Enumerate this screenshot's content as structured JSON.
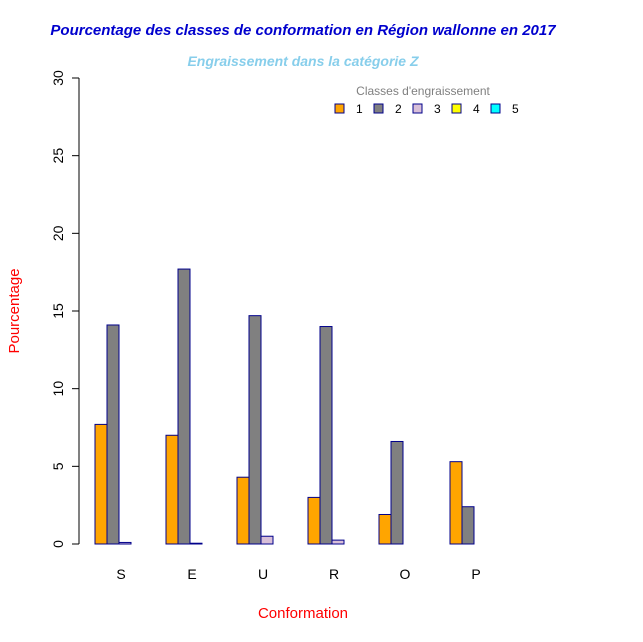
{
  "chart_data": {
    "type": "bar",
    "title": "Pourcentage des classes de conformation en Région wallonne en 2017",
    "subtitle": "Engraissement dans la catégorie Z",
    "xlabel": "Conformation",
    "ylabel": "Pourcentage",
    "ylim": [
      0,
      30
    ],
    "yticks": [
      0,
      5,
      10,
      15,
      20,
      25,
      30
    ],
    "categories": [
      "S",
      "E",
      "U",
      "R",
      "O",
      "P"
    ],
    "legend": {
      "title": "Classes d'engraissement",
      "placement": "top-right"
    },
    "series": [
      {
        "name": "1",
        "color": "#FFA500",
        "values": [
          7.7,
          7.0,
          4.3,
          3.0,
          1.9,
          5.3
        ]
      },
      {
        "name": "2",
        "color": "#808080",
        "values": [
          14.1,
          17.7,
          14.7,
          14.0,
          6.6,
          2.4
        ]
      },
      {
        "name": "3",
        "color": "#D8BFD8",
        "values": [
          0.1,
          0.05,
          0.5,
          0.25,
          0.0,
          0.0
        ]
      },
      {
        "name": "4",
        "color": "#FFFF00",
        "values": [
          0.0,
          0.0,
          0.0,
          0.0,
          0.0,
          0.0
        ]
      },
      {
        "name": "5",
        "color": "#00FFFF",
        "values": [
          0.0,
          0.0,
          0.0,
          0.0,
          0.0,
          0.0
        ]
      }
    ],
    "colors": {
      "title": "#0000CD",
      "subtitle": "#87CEEB",
      "axis_labels": "#FF0000",
      "bar_border": "#00008B",
      "legend_title": "#808080"
    }
  }
}
